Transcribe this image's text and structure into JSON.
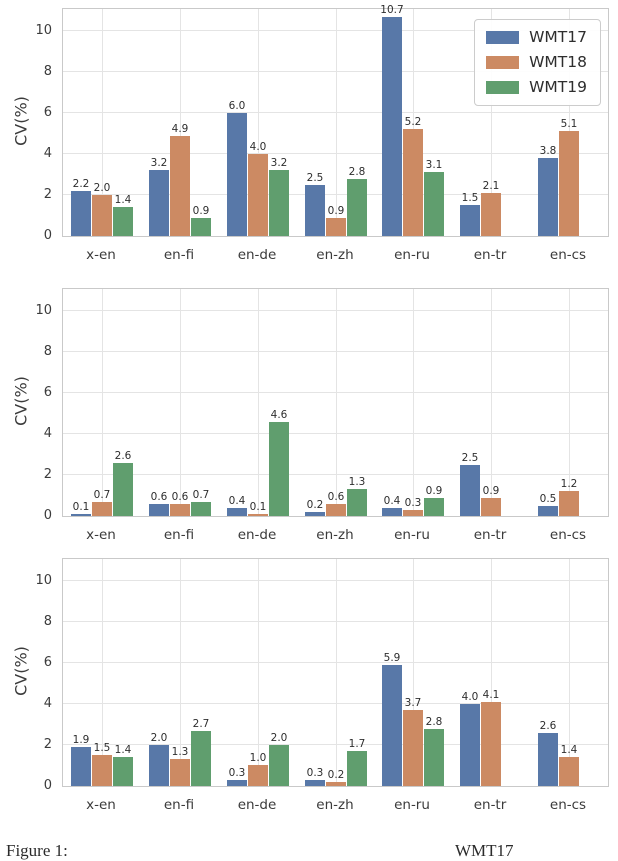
{
  "figure": {
    "ylabel": "CV(%)",
    "yticks": [
      0,
      2,
      4,
      6,
      8,
      10
    ],
    "categories": [
      "x-en",
      "en-fi",
      "en-de",
      "en-zh",
      "en-ru",
      "en-tr",
      "en-cs"
    ],
    "palette": {
      "WMT17": "#5878a8",
      "WMT18": "#cc8a63",
      "WMT19": "#609e6e"
    }
  },
  "chart_data": [
    {
      "type": "bar",
      "title": "",
      "xlabel": "",
      "ylabel": "CV(%)",
      "ylim": [
        0,
        11.1
      ],
      "grid": true,
      "legend": true,
      "legend_position": "upper right",
      "categories": [
        "x-en",
        "en-fi",
        "en-de",
        "en-zh",
        "en-ru",
        "en-tr",
        "en-cs"
      ],
      "series": [
        {
          "name": "WMT17",
          "color": "#5878a8",
          "values": [
            2.2,
            3.2,
            6.0,
            2.5,
            10.7,
            1.5,
            3.8
          ]
        },
        {
          "name": "WMT18",
          "color": "#cc8a63",
          "values": [
            2.0,
            4.9,
            4.0,
            0.9,
            5.2,
            2.1,
            5.1
          ]
        },
        {
          "name": "WMT19",
          "color": "#609e6e",
          "values": [
            1.4,
            0.9,
            3.2,
            2.8,
            3.1,
            null,
            null
          ]
        }
      ]
    },
    {
      "type": "bar",
      "title": "",
      "xlabel": "",
      "ylabel": "CV(%)",
      "ylim": [
        0,
        11.1
      ],
      "grid": true,
      "legend": false,
      "categories": [
        "x-en",
        "en-fi",
        "en-de",
        "en-zh",
        "en-ru",
        "en-tr",
        "en-cs"
      ],
      "series": [
        {
          "name": "WMT17",
          "color": "#5878a8",
          "values": [
            0.1,
            0.6,
            0.4,
            0.2,
            0.4,
            2.5,
            0.5
          ]
        },
        {
          "name": "WMT18",
          "color": "#cc8a63",
          "values": [
            0.7,
            0.6,
            0.1,
            0.6,
            0.3,
            0.9,
            1.2
          ]
        },
        {
          "name": "WMT19",
          "color": "#609e6e",
          "values": [
            2.6,
            0.7,
            4.6,
            1.3,
            0.9,
            null,
            null
          ]
        }
      ]
    },
    {
      "type": "bar",
      "title": "",
      "xlabel": "",
      "ylabel": "CV(%)",
      "ylim": [
        0,
        11.1
      ],
      "grid": true,
      "legend": false,
      "categories": [
        "x-en",
        "en-fi",
        "en-de",
        "en-zh",
        "en-ru",
        "en-tr",
        "en-cs"
      ],
      "series": [
        {
          "name": "WMT17",
          "color": "#5878a8",
          "values": [
            1.9,
            2.0,
            0.3,
            0.3,
            5.9,
            4.0,
            2.6
          ]
        },
        {
          "name": "WMT18",
          "color": "#cc8a63",
          "values": [
            1.5,
            1.3,
            1.0,
            0.2,
            3.7,
            4.1,
            1.4
          ]
        },
        {
          "name": "WMT19",
          "color": "#609e6e",
          "values": [
            1.4,
            2.7,
            2.0,
            1.7,
            2.8,
            null,
            null
          ]
        }
      ]
    }
  ],
  "caption": {
    "prefix": "Figure 1:",
    "right_fragment": "WMT17"
  }
}
